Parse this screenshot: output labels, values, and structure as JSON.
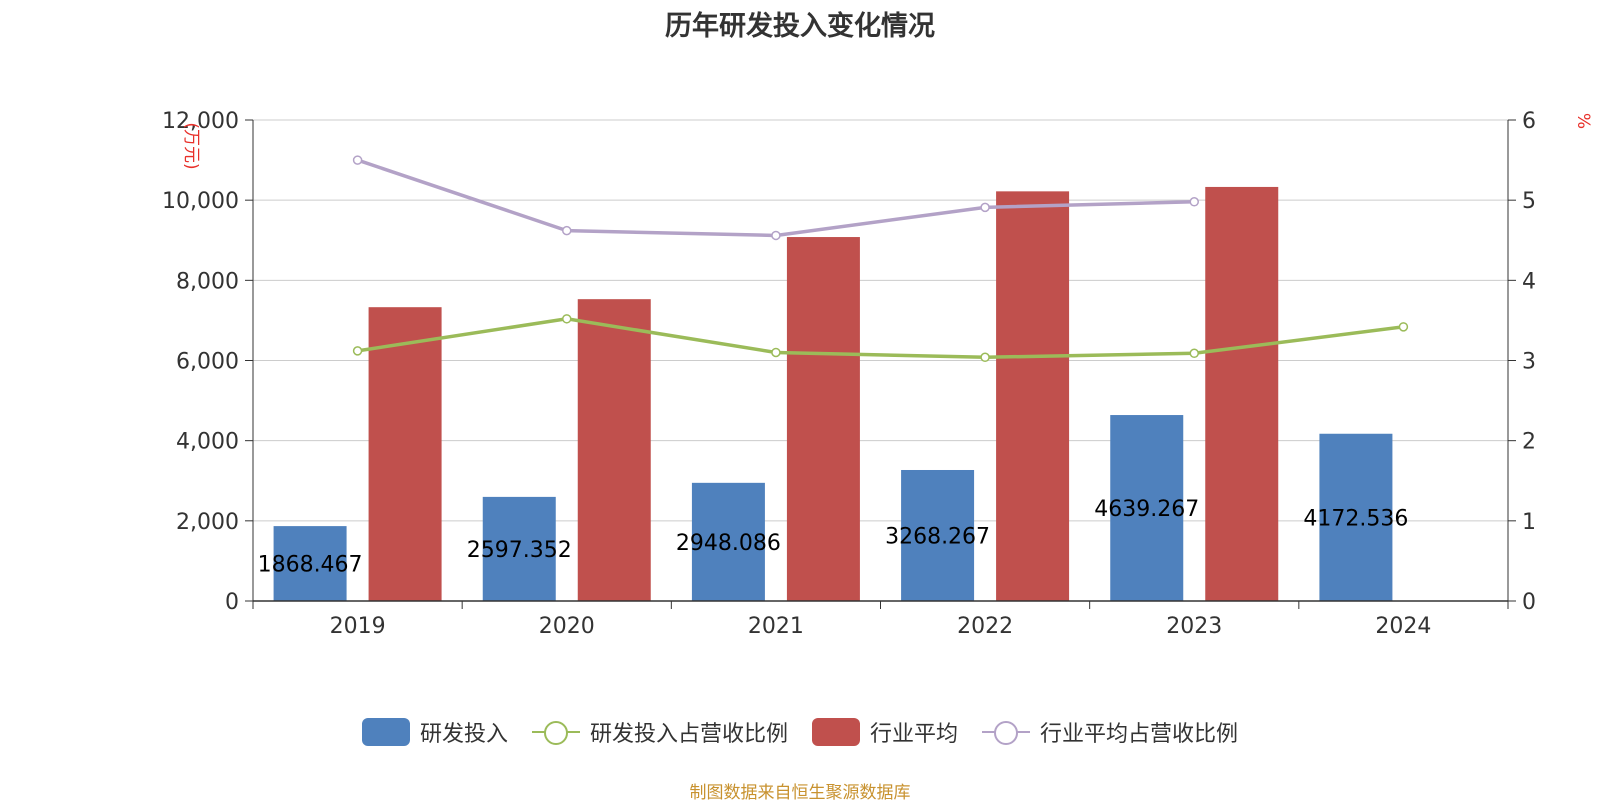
{
  "title": "历年研发投入变化情况",
  "source": "制图数据来自恒生聚源数据库",
  "colors": {
    "rd_investment": "#4f81bd",
    "rd_ratio": "#9bbb59",
    "industry_avg": "#c0504d",
    "industry_ratio": "#b3a2c7",
    "unit": "#e8302a"
  },
  "chart_data": {
    "type": "bar",
    "categories": [
      "2019",
      "2020",
      "2021",
      "2022",
      "2023",
      "2024"
    ],
    "y_left": {
      "unit": "万元",
      "ylim": [
        0,
        12000
      ],
      "ticks": [
        "0",
        "2,000",
        "4,000",
        "6,000",
        "8,000",
        "10,000",
        "12,000"
      ]
    },
    "y_right": {
      "unit": "%",
      "ylim": [
        0,
        6
      ],
      "ticks": [
        "0",
        "1",
        "2",
        "3",
        "4",
        "5",
        "6"
      ]
    },
    "grid": true,
    "legend_position": "bottom",
    "series": [
      {
        "name": "研发投入",
        "type": "bar",
        "axis": "left",
        "values": [
          1868.467,
          2597.352,
          2948.086,
          3268.267,
          4639.267,
          4172.536
        ],
        "labels": [
          "1868.467",
          "2597.352",
          "2948.086",
          "3268.267",
          "4639.267",
          "4172.536"
        ]
      },
      {
        "name": "研发投入占营收比例",
        "type": "line",
        "axis": "right",
        "values": [
          3.12,
          3.52,
          3.1,
          3.04,
          3.09,
          3.42
        ]
      },
      {
        "name": "行业平均",
        "type": "bar",
        "axis": "left",
        "values": [
          7330,
          7530,
          9080,
          10220,
          10330,
          null
        ]
      },
      {
        "name": "行业平均占营收比例",
        "type": "line",
        "axis": "right",
        "values": [
          5.5,
          4.62,
          4.56,
          4.91,
          4.98,
          null
        ]
      }
    ]
  }
}
